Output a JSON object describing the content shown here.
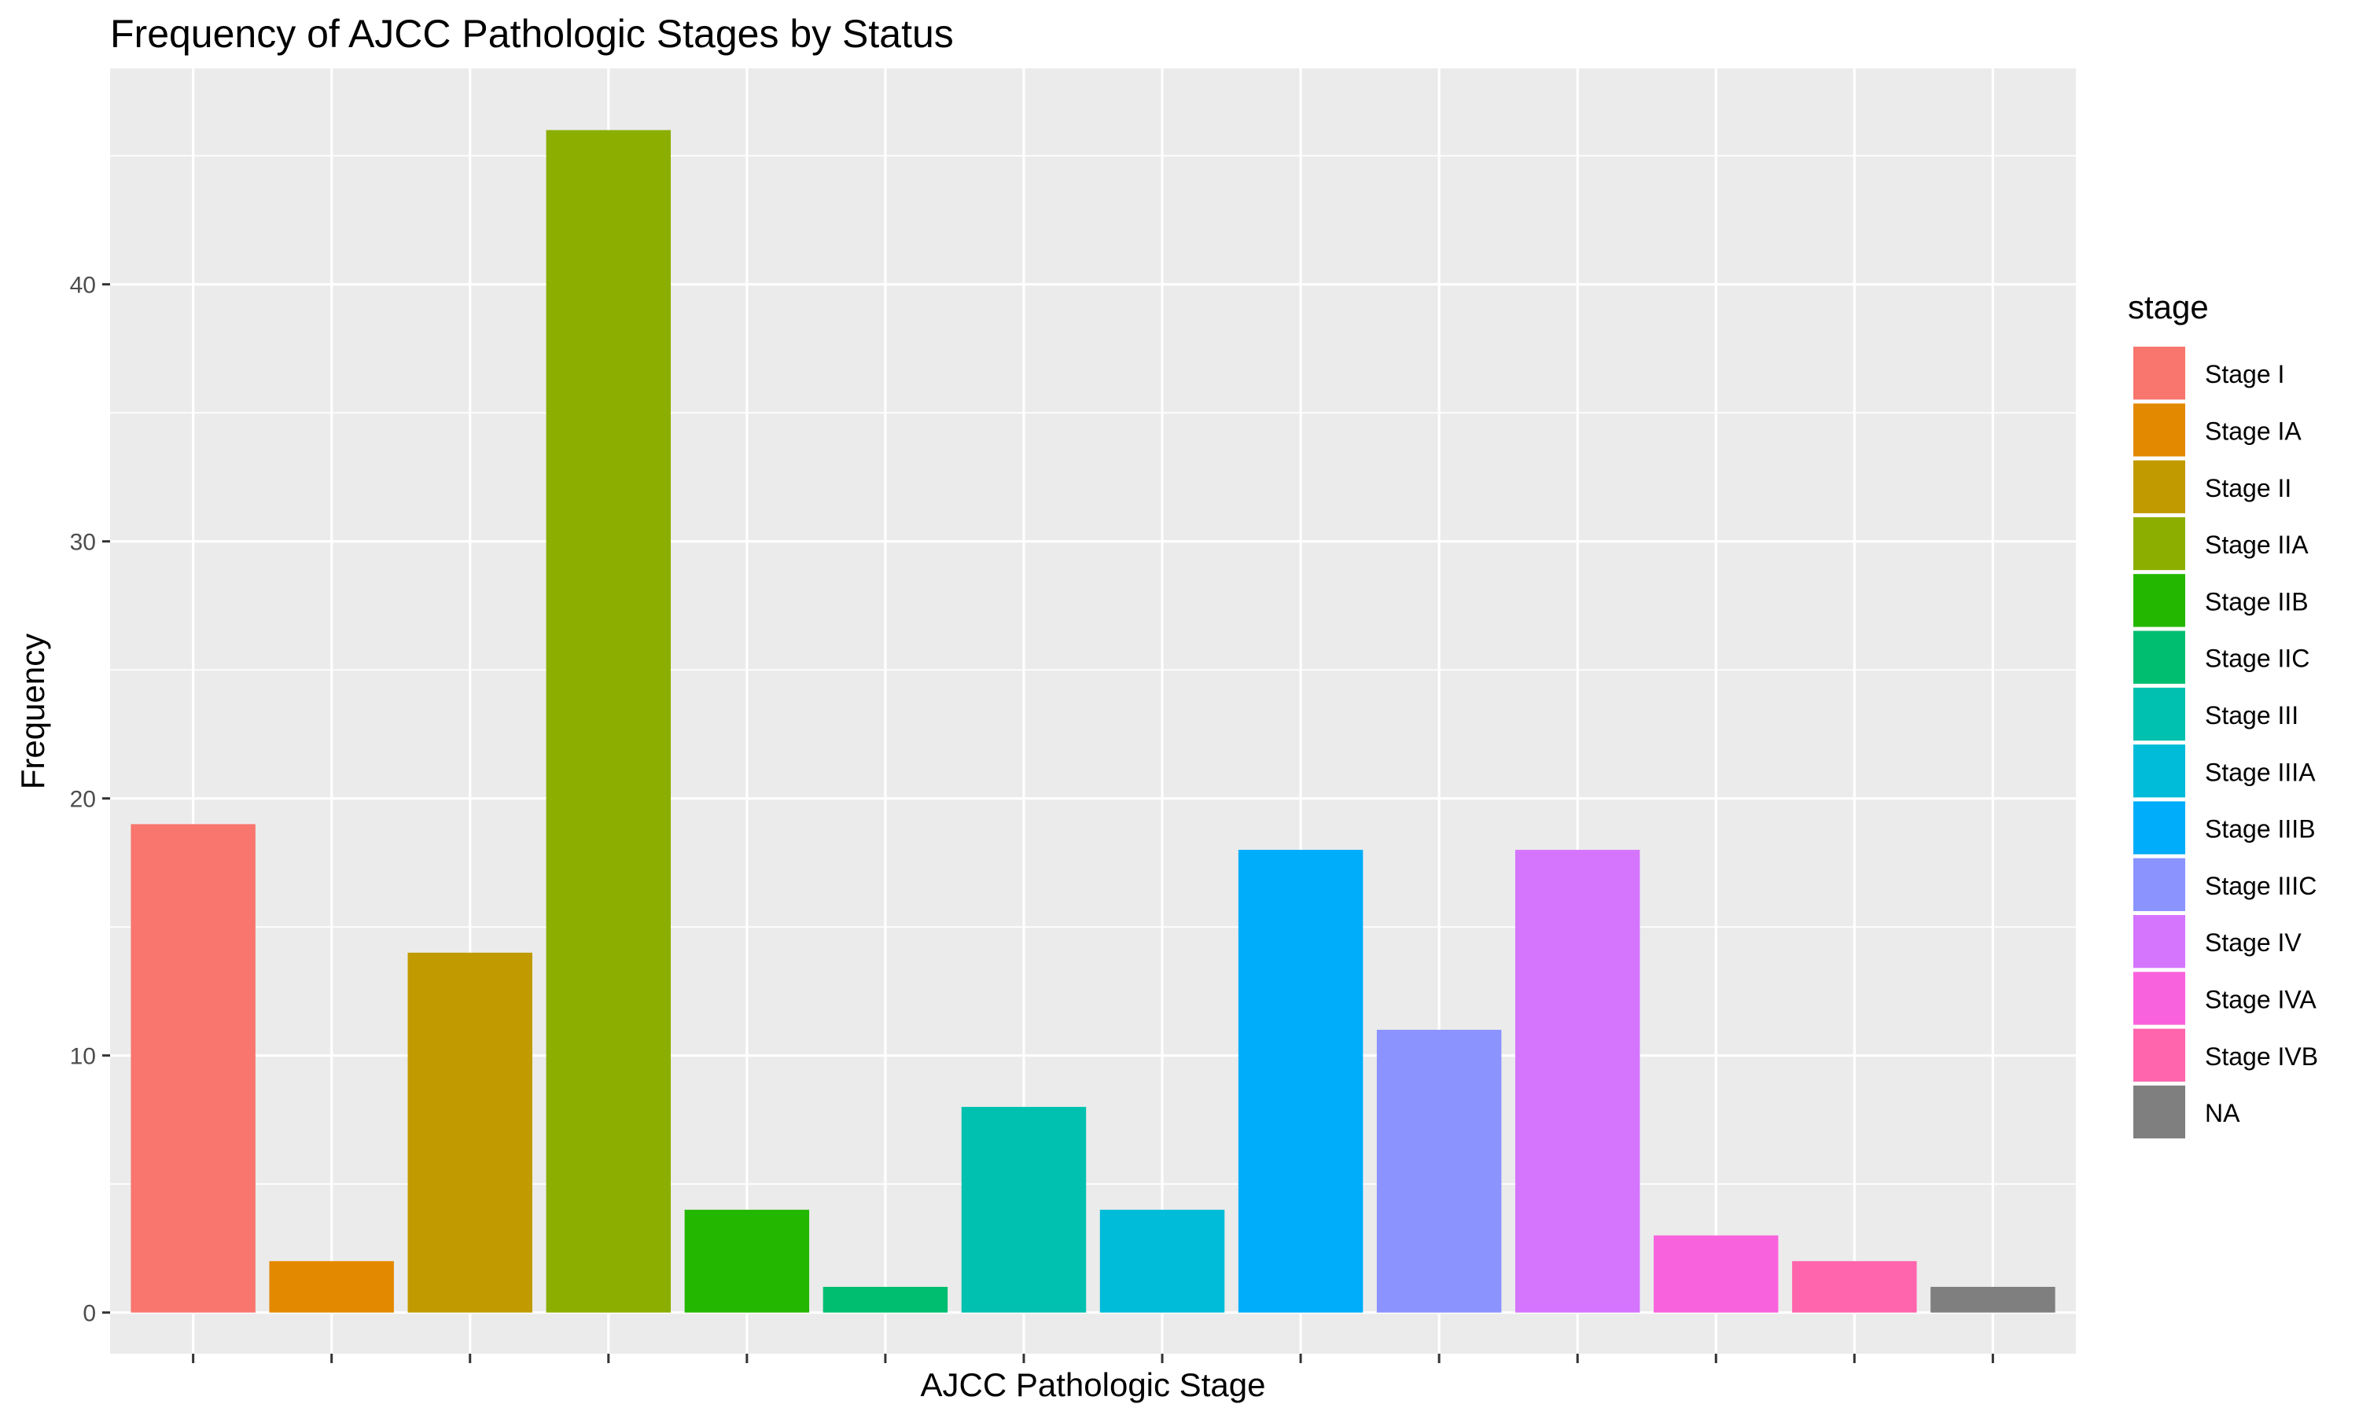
{
  "chart_data": {
    "type": "bar",
    "title": "Frequency of AJCC Pathologic Stages by Status",
    "xlabel": "AJCC Pathologic Stage",
    "ylabel": "Frequency",
    "ylim": [
      -1.6,
      48.4
    ],
    "yticks": [
      0,
      10,
      20,
      30,
      40
    ],
    "categories": [
      "Stage I",
      "Stage IA",
      "Stage II",
      "Stage IIA",
      "Stage IIB",
      "Stage IIC",
      "Stage III",
      "Stage IIIA",
      "Stage IIIB",
      "Stage IIIC",
      "Stage IV",
      "Stage IVA",
      "Stage IVB",
      "NA"
    ],
    "values": [
      19,
      2,
      14,
      46,
      4,
      1,
      8,
      4,
      18,
      11,
      18,
      3,
      2,
      1
    ],
    "colors": [
      "#F8766D",
      "#E38900",
      "#C49A00",
      "#99A800",
      "#53B400",
      "#00BC56",
      "#00C094",
      "#00BFC4",
      "#00B6EB",
      "#06A4FF",
      "#A58AFF",
      "#DF70F8",
      "#FB61D7",
      "#FF66A8"
    ],
    "bar_colors": [
      "#F8766D",
      "#E38900",
      "#C19A00",
      "#8CAE00",
      "#24B700",
      "#00BE70",
      "#00C0AF",
      "#00BCD8",
      "#00ADFA",
      "#8B93FF",
      "#D575FE",
      "#F962DD",
      "#FF65AC",
      "#7F7F7F"
    ],
    "legend": {
      "title": "stage",
      "placement": "right",
      "items": [
        "Stage I",
        "Stage IA",
        "Stage II",
        "Stage IIA",
        "Stage IIB",
        "Stage IIC",
        "Stage III",
        "Stage IIIA",
        "Stage IIIB",
        "Stage IIIC",
        "Stage IV",
        "Stage IVA",
        "Stage IVB",
        "NA"
      ]
    },
    "grid": true,
    "x_tick_labels_shown": false,
    "panel_background": "#EBEBEB",
    "grid_color": "#FFFFFF"
  }
}
